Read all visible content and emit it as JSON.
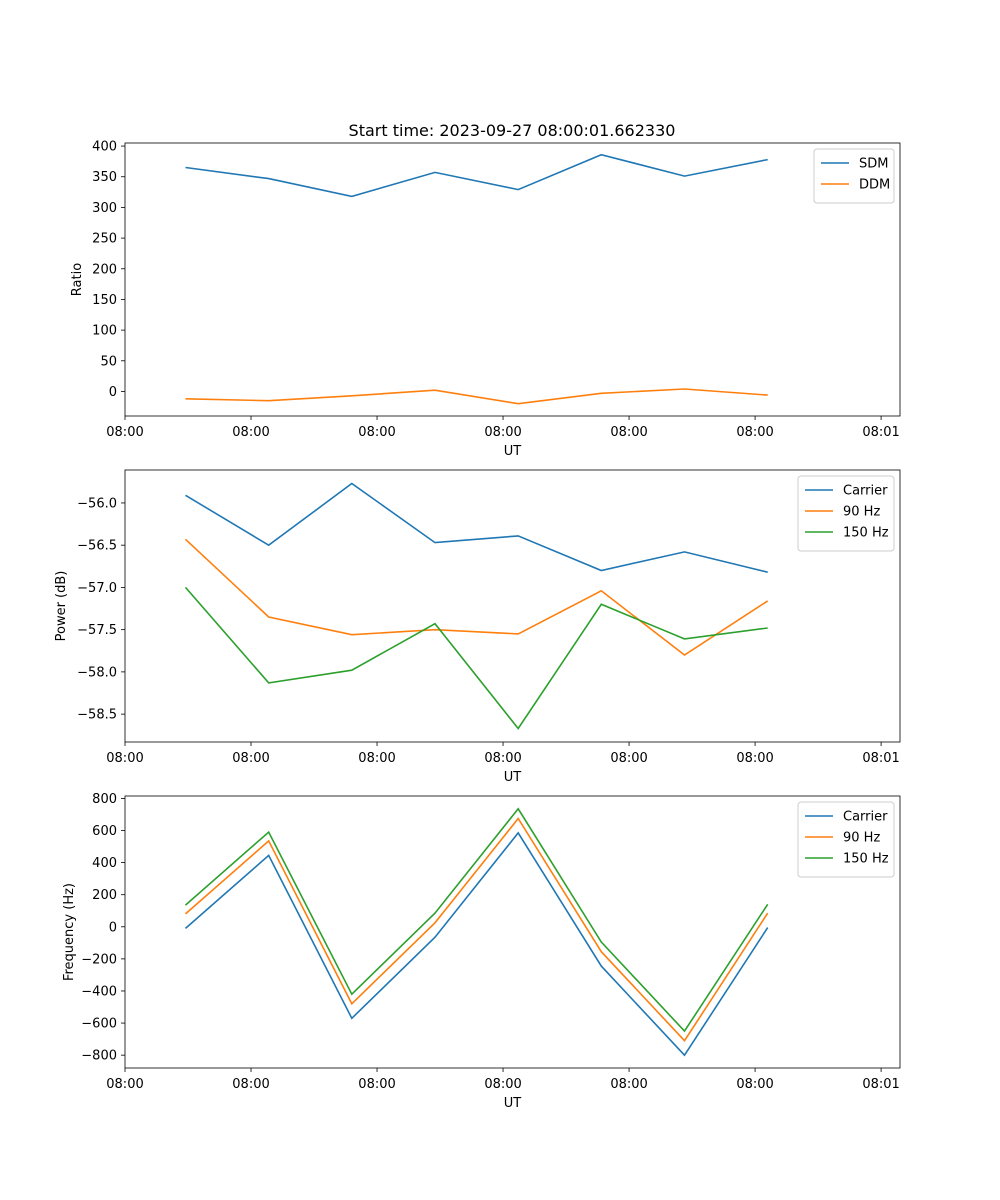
{
  "figure_title": "Start time: 2023-09-27 08:00:01.662330",
  "chart_data": [
    {
      "type": "line",
      "title": "Start time: 2023-09-27 08:00:01.662330",
      "xlabel": "UT",
      "ylabel": "Ratio",
      "xlim": [
        0,
        6.15
      ],
      "ylim": [
        -40,
        405
      ],
      "x_ticks": [
        0,
        1,
        2,
        3,
        4,
        5,
        6
      ],
      "x_tick_labels": [
        "08:00",
        "08:00",
        "08:00",
        "08:00",
        "08:00",
        "08:00",
        "08:01"
      ],
      "y_ticks": [
        0,
        50,
        100,
        150,
        200,
        250,
        300,
        350,
        400
      ],
      "y_tick_labels": [
        "0",
        "50",
        "100",
        "150",
        "200",
        "250",
        "300",
        "350",
        "400"
      ],
      "legend_position": "top-right",
      "x": [
        0.48,
        1.14,
        1.8,
        2.46,
        3.12,
        3.78,
        4.44,
        5.1
      ],
      "series": [
        {
          "name": "SDM",
          "color": "#1f77b4",
          "values": [
            365,
            347,
            318,
            357,
            329,
            386,
            351,
            378
          ]
        },
        {
          "name": "DDM",
          "color": "#ff7f0e",
          "values": [
            -12,
            -15,
            -7,
            2,
            -20,
            -3,
            4,
            -6
          ]
        }
      ]
    },
    {
      "type": "line",
      "title": "",
      "xlabel": "UT",
      "ylabel": "Power (dB)",
      "xlim": [
        0,
        6.15
      ],
      "ylim": [
        -58.83,
        -55.61
      ],
      "x_ticks": [
        0,
        1,
        2,
        3,
        4,
        5,
        6
      ],
      "x_tick_labels": [
        "08:00",
        "08:00",
        "08:00",
        "08:00",
        "08:00",
        "08:00",
        "08:01"
      ],
      "y_ticks": [
        -58.5,
        -58.0,
        -57.5,
        -57.0,
        -56.5,
        -56.0
      ],
      "y_tick_labels": [
        "−58.5",
        "−58.0",
        "−57.5",
        "−57.0",
        "−56.5",
        "−56.0"
      ],
      "legend_position": "top-right",
      "x": [
        0.48,
        1.14,
        1.8,
        2.46,
        3.12,
        3.78,
        4.44,
        5.1
      ],
      "series": [
        {
          "name": "Carrier",
          "color": "#1f77b4",
          "values": [
            -55.91,
            -56.5,
            -55.77,
            -56.47,
            -56.39,
            -56.8,
            -56.58,
            -56.82
          ]
        },
        {
          "name": "90 Hz",
          "color": "#ff7f0e",
          "values": [
            -56.43,
            -57.35,
            -57.56,
            -57.5,
            -57.55,
            -57.04,
            -57.8,
            -57.16
          ]
        },
        {
          "name": "150 Hz",
          "color": "#2ca02c",
          "values": [
            -57.0,
            -58.13,
            -57.98,
            -57.43,
            -58.67,
            -57.2,
            -57.61,
            -57.48
          ]
        }
      ]
    },
    {
      "type": "line",
      "title": "",
      "xlabel": "UT",
      "ylabel": "Frequency (Hz)",
      "xlim": [
        0,
        6.15
      ],
      "ylim": [
        -880,
        815
      ],
      "x_ticks": [
        0,
        1,
        2,
        3,
        4,
        5,
        6
      ],
      "x_tick_labels": [
        "08:00",
        "08:00",
        "08:00",
        "08:00",
        "08:00",
        "08:00",
        "08:01"
      ],
      "y_ticks": [
        -800,
        -600,
        -400,
        -200,
        0,
        200,
        400,
        600,
        800
      ],
      "y_tick_labels": [
        "−800",
        "−600",
        "−400",
        "−200",
        "0",
        "200",
        "400",
        "600",
        "800"
      ],
      "legend_position": "top-right",
      "x": [
        0.48,
        1.14,
        1.8,
        2.46,
        3.12,
        3.78,
        4.44,
        5.1
      ],
      "series": [
        {
          "name": "Carrier",
          "color": "#1f77b4",
          "values": [
            -10,
            445,
            -570,
            -65,
            585,
            -245,
            -800,
            -5
          ]
        },
        {
          "name": "90 Hz",
          "color": "#ff7f0e",
          "values": [
            80,
            535,
            -480,
            25,
            675,
            -155,
            -710,
            85
          ]
        },
        {
          "name": "150 Hz",
          "color": "#2ca02c",
          "values": [
            135,
            590,
            -420,
            85,
            735,
            -95,
            -650,
            140
          ]
        }
      ]
    }
  ]
}
